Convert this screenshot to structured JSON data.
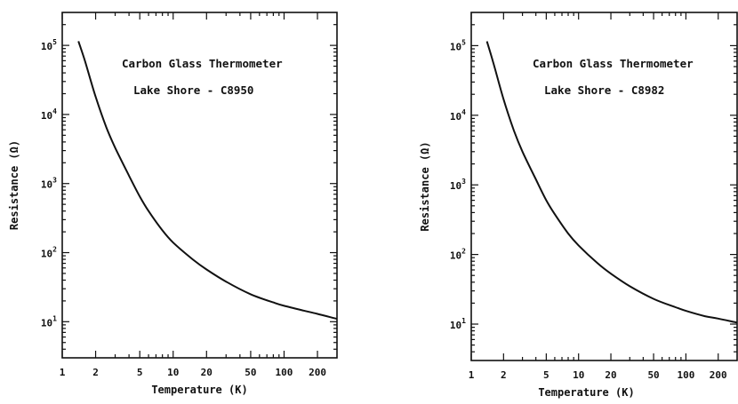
{
  "chart_data": [
    {
      "type": "line",
      "annotations": [
        "Carbon Glass Thermometer",
        "Lake Shore - C8950"
      ],
      "xlabel": "Temperature (K)",
      "ylabel": "Resistance (Ω)",
      "xscale": "log",
      "yscale": "log",
      "xlim": [
        1,
        300
      ],
      "ylim": [
        3,
        300000
      ],
      "xticks": [
        1,
        2,
        5,
        10,
        20,
        50,
        100,
        200
      ],
      "xtick_labels": [
        "1",
        "2",
        "5",
        "10",
        "20",
        "50",
        "100",
        "200"
      ],
      "yticks": [
        10,
        100,
        1000,
        10000,
        100000
      ],
      "ytick_labels": [
        {
          "base": "10",
          "exp": "1"
        },
        {
          "base": "10",
          "exp": "2"
        },
        {
          "base": "10",
          "exp": "3"
        },
        {
          "base": "10",
          "exp": "4"
        },
        {
          "base": "10",
          "exp": "5"
        }
      ],
      "grid": false,
      "series": [
        {
          "x": [
            1.4,
            1.6,
            2,
            2.5,
            3,
            4,
            5,
            6,
            8,
            10,
            15,
            20,
            30,
            50,
            80,
            100,
            150,
            200,
            300
          ],
          "y": [
            115000,
            60000,
            18000,
            6500,
            3300,
            1300,
            650,
            400,
            210,
            140,
            80,
            57,
            38,
            25,
            19,
            17,
            14.5,
            13,
            11
          ]
        }
      ]
    },
    {
      "type": "line",
      "annotations": [
        "Carbon Glass Thermometer",
        "Lake Shore - C8982"
      ],
      "xlabel": "Temperature (K)",
      "ylabel": "Resistance (Ω)",
      "xscale": "log",
      "yscale": "log",
      "xlim": [
        1,
        300
      ],
      "ylim": [
        3,
        300000
      ],
      "xticks": [
        1,
        2,
        5,
        10,
        20,
        50,
        100,
        200
      ],
      "xtick_labels": [
        "1",
        "2",
        "5",
        "10",
        "20",
        "50",
        "100",
        "200"
      ],
      "yticks": [
        10,
        100,
        1000,
        10000,
        100000
      ],
      "ytick_labels": [
        {
          "base": "10",
          "exp": "1"
        },
        {
          "base": "10",
          "exp": "2"
        },
        {
          "base": "10",
          "exp": "3"
        },
        {
          "base": "10",
          "exp": "4"
        },
        {
          "base": "10",
          "exp": "5"
        }
      ],
      "grid": false,
      "series": [
        {
          "x": [
            1.4,
            1.6,
            2,
            2.5,
            3,
            4,
            5,
            6,
            8,
            10,
            15,
            20,
            30,
            50,
            80,
            100,
            150,
            200,
            300
          ],
          "y": [
            115000,
            58000,
            17000,
            6000,
            3000,
            1200,
            600,
            380,
            200,
            135,
            75,
            53,
            35,
            23,
            17.5,
            15.5,
            13,
            12,
            10.5
          ]
        }
      ]
    }
  ]
}
